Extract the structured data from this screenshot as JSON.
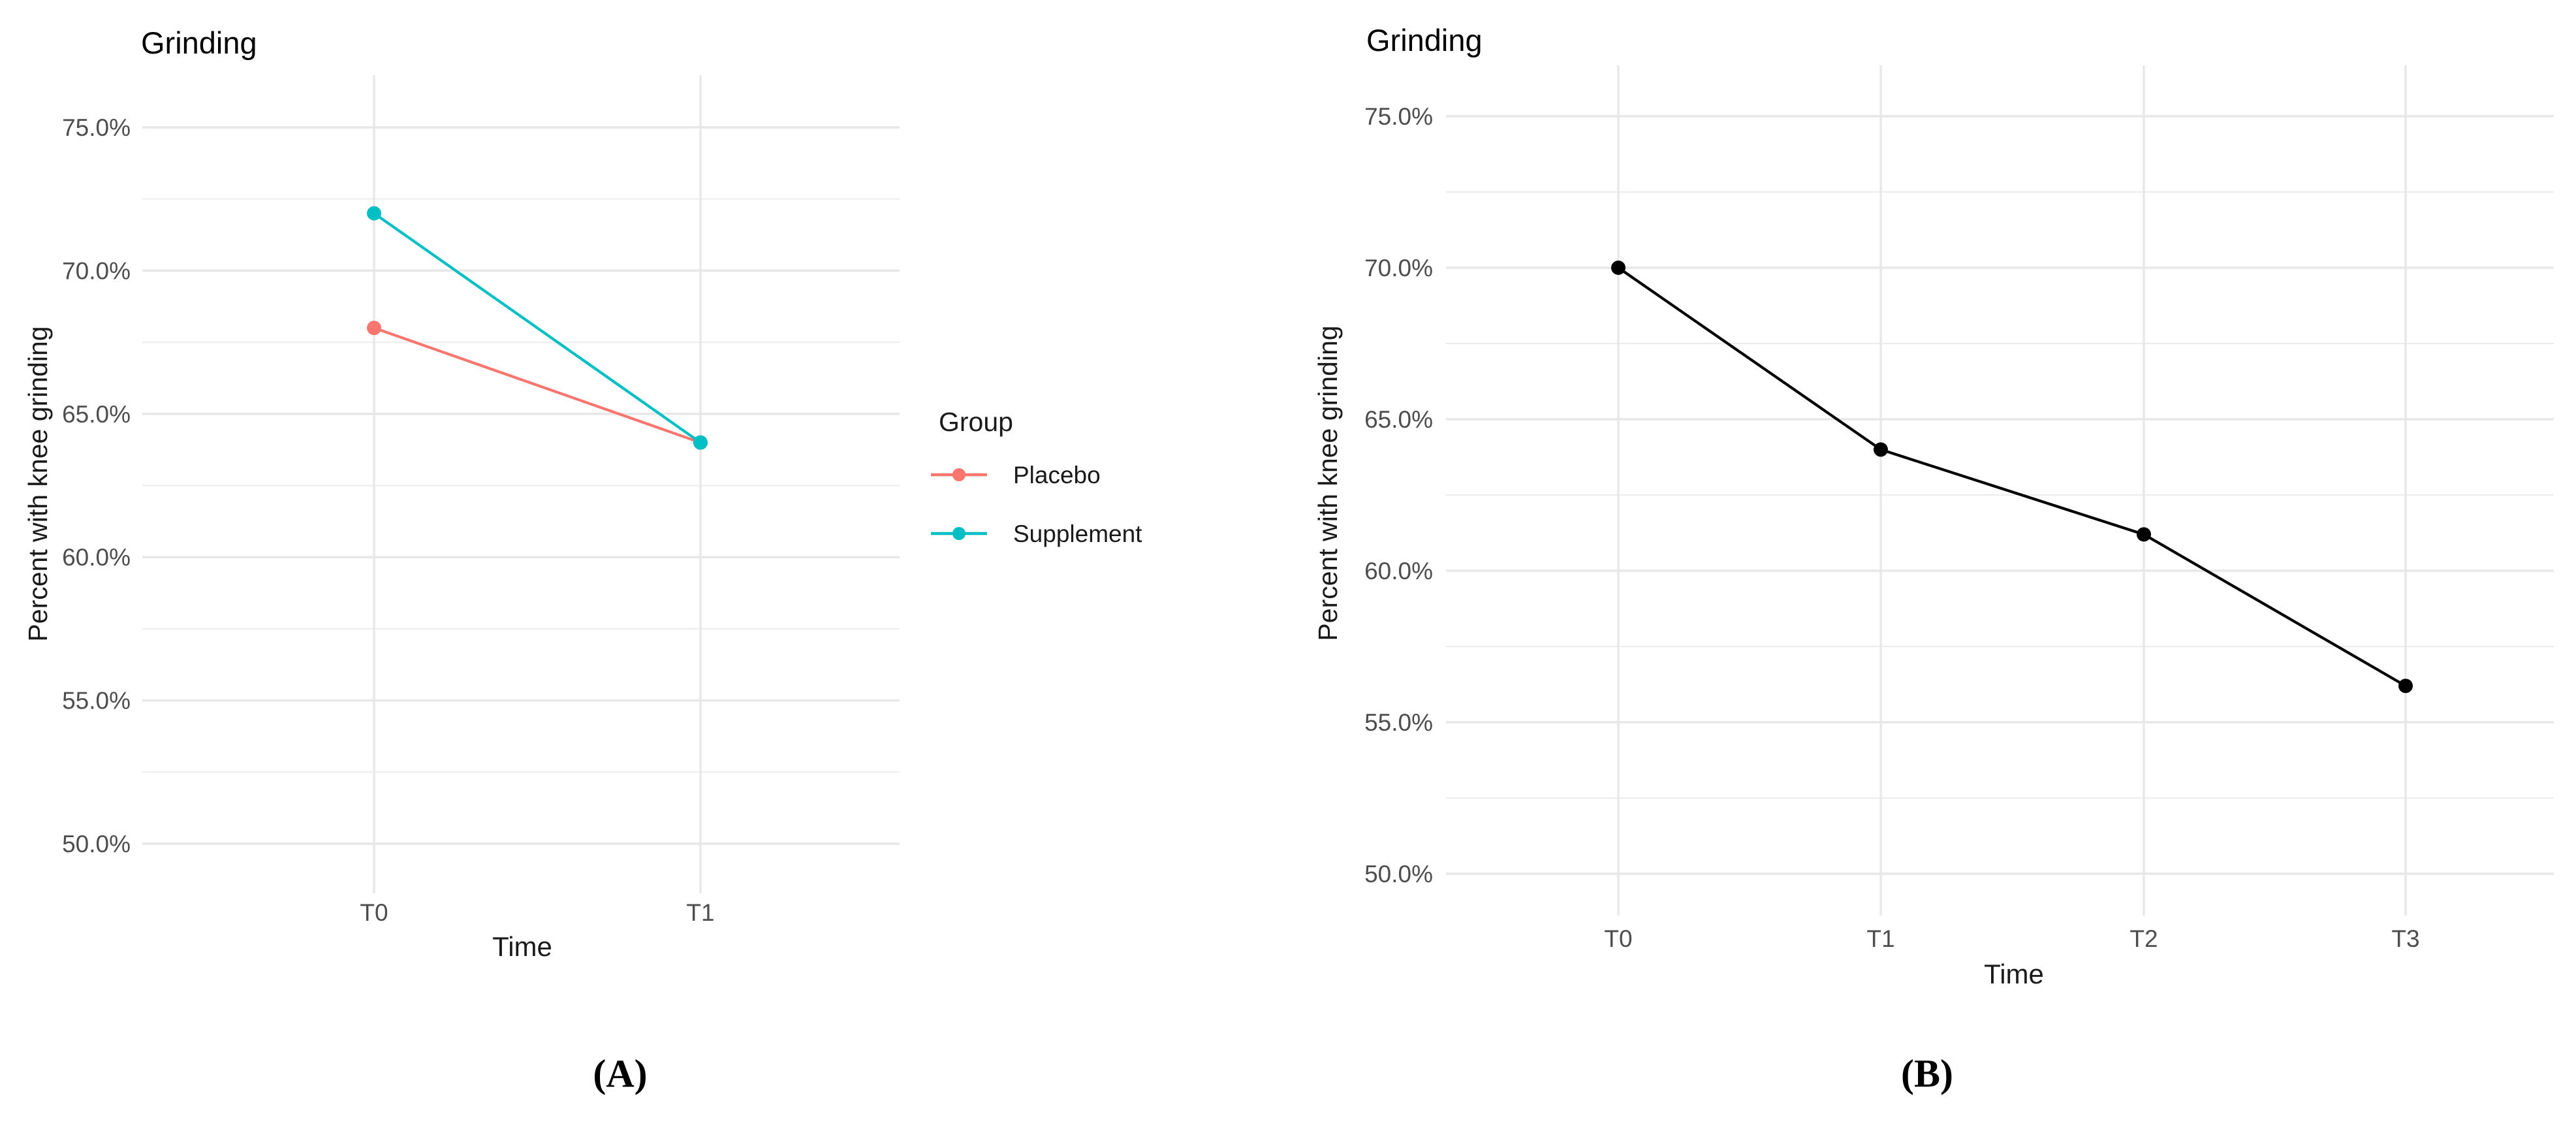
{
  "figure": {
    "background": "#ffffff",
    "captions": {
      "a": "(A)",
      "b": "(B)"
    }
  },
  "colors": {
    "grid_major": "#e7e7e7",
    "grid_minor": "#ededed",
    "tick_label": "#4d4d4d",
    "axis_title": "#1a1a1a",
    "plot_title": "#000000",
    "legend_text": "#1a1a1a",
    "placebo": "#F8766D",
    "supplement": "#00BFC4",
    "panel_b_line": "#000000"
  },
  "chart_data": [
    {
      "id": "panel_a",
      "type": "line",
      "title": "Grinding",
      "xlabel": "Time",
      "ylabel": "Percent with knee grinding",
      "categories": [
        "T0",
        "T1"
      ],
      "series": [
        {
          "name": "Placebo",
          "color": "#F8766D",
          "values": [
            68.0,
            64.0
          ]
        },
        {
          "name": "Supplement",
          "color": "#00BFC4",
          "values": [
            72.0,
            64.0
          ]
        }
      ],
      "y_ticks": [
        {
          "value": 75,
          "label": "75.0%"
        },
        {
          "value": 70,
          "label": "70.0%"
        },
        {
          "value": 65,
          "label": "65.0%"
        },
        {
          "value": 60,
          "label": "60.0%"
        },
        {
          "value": 55,
          "label": "55.0%"
        },
        {
          "value": 50,
          "label": "50.0%"
        }
      ],
      "ylim": [
        48.2,
        76.8
      ],
      "grid": true,
      "legend": {
        "title": "Group",
        "position": "right",
        "entries": [
          "Placebo",
          "Supplement"
        ]
      },
      "caption": "(A)"
    },
    {
      "id": "panel_b",
      "type": "line",
      "title": "Grinding",
      "xlabel": "Time",
      "ylabel": "Percent with knee grinding",
      "categories": [
        "T0",
        "T1",
        "T2",
        "T3"
      ],
      "series": [
        {
          "color": "#000000",
          "values": [
            70.0,
            64.0,
            61.2,
            56.2
          ]
        }
      ],
      "y_ticks": [
        {
          "value": 75,
          "label": "75.0%"
        },
        {
          "value": 70,
          "label": "70.0%"
        },
        {
          "value": 65,
          "label": "65.0%"
        },
        {
          "value": 60,
          "label": "60.0%"
        },
        {
          "value": 55,
          "label": "55.0%"
        },
        {
          "value": 50,
          "label": "50.0%"
        }
      ],
      "ylim": [
        48.6,
        76.7
      ],
      "grid": true,
      "legend": null,
      "caption": "(B)"
    }
  ]
}
